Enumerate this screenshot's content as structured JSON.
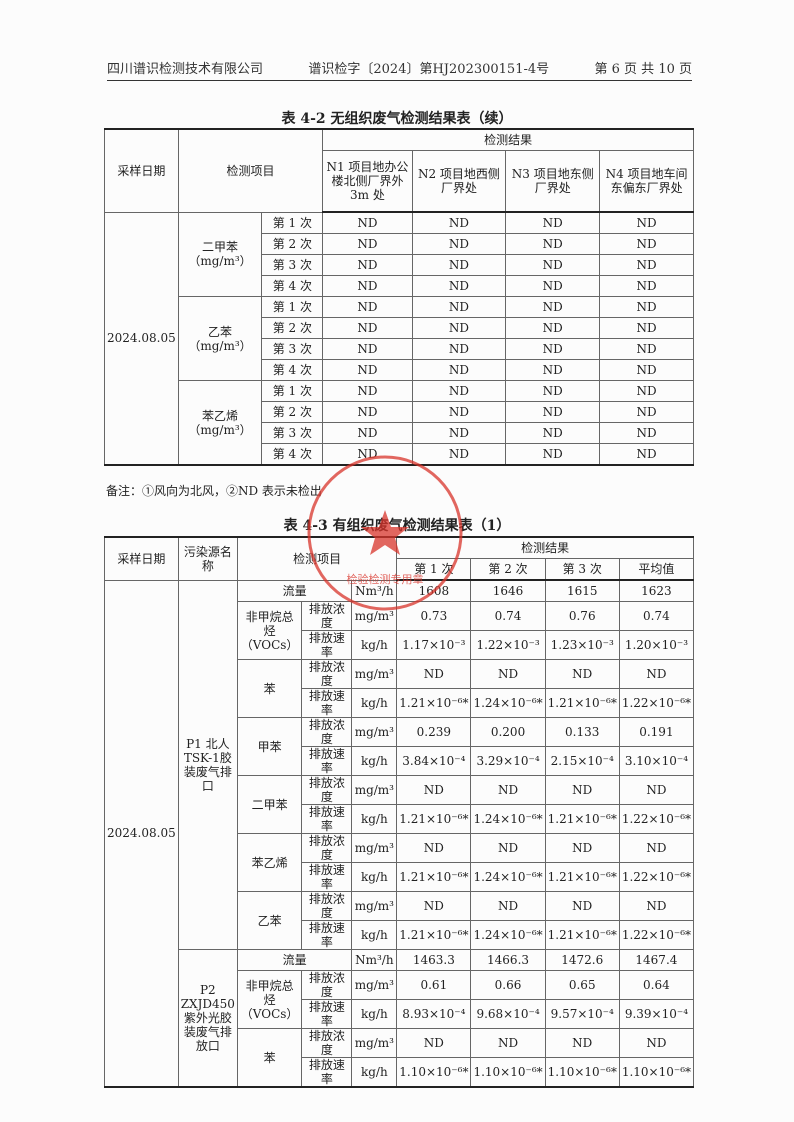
{
  "header": {
    "company": "四川谱识检测技术有限公司",
    "report_no": "谱识检字〔2024〕第HJ202300151-4号",
    "page": "第 6 页 共 10 页"
  },
  "table42": {
    "title": "表 4-2   无组织废气检测结果表（续）",
    "h_date": "采样日期",
    "h_item": "检测项目",
    "h_result": "检测结果",
    "points": [
      "N1 项目地办公楼北侧厂界外 3m 处",
      "N2 项目地西侧厂界处",
      "N3 项目地东侧厂界处",
      "N4 项目地车间东偏东厂界处"
    ],
    "date": "2024.08.05",
    "groups": [
      {
        "name": "二甲苯",
        "unit": "（mg/m³）"
      },
      {
        "name": "乙苯",
        "unit": "（mg/m³）"
      },
      {
        "name": "苯乙烯",
        "unit": "（mg/m³）"
      }
    ],
    "times": [
      "第 1 次",
      "第 2 次",
      "第 3 次",
      "第 4 次"
    ],
    "value": "ND"
  },
  "note": "备注：①风向为北风，②ND 表示未检出",
  "table43": {
    "title": "表 4-3   有组织废气检测结果表（1）",
    "h_date": "采样日期",
    "h_source": "污染源名称",
    "h_item": "检测项目",
    "h_result": "检测结果",
    "h_cols": [
      "第 1 次",
      "第 2 次",
      "第 3 次",
      "平均值"
    ],
    "date": "2024.08.05",
    "sources": [
      {
        "name": "P1 北人TSK-1胶装废气排口",
        "flow": {
          "label": "流量",
          "unit": "Nm³/h",
          "values": [
            "1608",
            "1646",
            "1615",
            "1623"
          ]
        },
        "items": [
          {
            "name": "非甲烷总烃（VOCs）",
            "rows": [
              {
                "p": "排放浓度",
                "unit": "mg/m³",
                "values": [
                  "0.73",
                  "0.74",
                  "0.76",
                  "0.74"
                ]
              },
              {
                "p": "排放速率",
                "unit": "kg/h",
                "values": [
                  "1.17×10⁻³",
                  "1.22×10⁻³",
                  "1.23×10⁻³",
                  "1.20×10⁻³"
                ]
              }
            ]
          },
          {
            "name": "苯",
            "rows": [
              {
                "p": "排放浓度",
                "unit": "mg/m³",
                "values": [
                  "ND",
                  "ND",
                  "ND",
                  "ND"
                ]
              },
              {
                "p": "排放速率",
                "unit": "kg/h",
                "values": [
                  "1.21×10⁻⁶*",
                  "1.24×10⁻⁶*",
                  "1.21×10⁻⁶*",
                  "1.22×10⁻⁶*"
                ]
              }
            ]
          },
          {
            "name": "甲苯",
            "rows": [
              {
                "p": "排放浓度",
                "unit": "mg/m³",
                "values": [
                  "0.239",
                  "0.200",
                  "0.133",
                  "0.191"
                ]
              },
              {
                "p": "排放速率",
                "unit": "kg/h",
                "values": [
                  "3.84×10⁻⁴",
                  "3.29×10⁻⁴",
                  "2.15×10⁻⁴",
                  "3.10×10⁻⁴"
                ]
              }
            ]
          },
          {
            "name": "二甲苯",
            "rows": [
              {
                "p": "排放浓度",
                "unit": "mg/m³",
                "values": [
                  "ND",
                  "ND",
                  "ND",
                  "ND"
                ]
              },
              {
                "p": "排放速率",
                "unit": "kg/h",
                "values": [
                  "1.21×10⁻⁶*",
                  "1.24×10⁻⁶*",
                  "1.21×10⁻⁶*",
                  "1.22×10⁻⁶*"
                ]
              }
            ]
          },
          {
            "name": "苯乙烯",
            "rows": [
              {
                "p": "排放浓度",
                "unit": "mg/m³",
                "values": [
                  "ND",
                  "ND",
                  "ND",
                  "ND"
                ]
              },
              {
                "p": "排放速率",
                "unit": "kg/h",
                "values": [
                  "1.21×10⁻⁶*",
                  "1.24×10⁻⁶*",
                  "1.21×10⁻⁶*",
                  "1.22×10⁻⁶*"
                ]
              }
            ]
          },
          {
            "name": "乙苯",
            "rows": [
              {
                "p": "排放浓度",
                "unit": "mg/m³",
                "values": [
                  "ND",
                  "ND",
                  "ND",
                  "ND"
                ]
              },
              {
                "p": "排放速率",
                "unit": "kg/h",
                "values": [
                  "1.21×10⁻⁶*",
                  "1.24×10⁻⁶*",
                  "1.21×10⁻⁶*",
                  "1.22×10⁻⁶*"
                ]
              }
            ]
          }
        ]
      },
      {
        "name": "P2 ZXJD450紫外光胶装废气排放口",
        "flow": {
          "label": "流量",
          "unit": "Nm³/h",
          "values": [
            "1463.3",
            "1466.3",
            "1472.6",
            "1467.4"
          ]
        },
        "items": [
          {
            "name": "非甲烷总烃（VOCs）",
            "rows": [
              {
                "p": "排放浓度",
                "unit": "mg/m³",
                "values": [
                  "0.61",
                  "0.66",
                  "0.65",
                  "0.64"
                ]
              },
              {
                "p": "排放速率",
                "unit": "kg/h",
                "values": [
                  "8.93×10⁻⁴",
                  "9.68×10⁻⁴",
                  "9.57×10⁻⁴",
                  "9.39×10⁻⁴"
                ]
              }
            ]
          },
          {
            "name": "苯",
            "rows": [
              {
                "p": "排放浓度",
                "unit": "mg/m³",
                "values": [
                  "ND",
                  "ND",
                  "ND",
                  "ND"
                ]
              },
              {
                "p": "排放速率",
                "unit": "kg/h",
                "values": [
                  "1.10×10⁻⁶*",
                  "1.10×10⁻⁶*",
                  "1.10×10⁻⁶*",
                  "1.10×10⁻⁶*"
                ]
              }
            ]
          }
        ]
      }
    ]
  },
  "stamp": {
    "outer": "四川谱识检测技术有限公司",
    "inner": "检验检测专用章",
    "color": "#d9342b"
  }
}
